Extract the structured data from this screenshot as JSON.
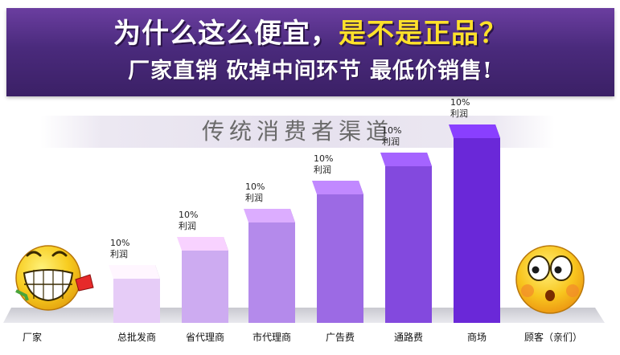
{
  "banner": {
    "headline_a": "为什么这么便宜，",
    "headline_b": "是不是正品？",
    "subline": "厂家直销  砍掉中间环节  最低价销售!"
  },
  "section": {
    "title": "传统消费者渠道"
  },
  "colors": {
    "banner_top": "#6b3ea0",
    "banner_bottom": "#3b2066",
    "headline_highlight": "#ffe12a",
    "bar_light": "#e6ccf7",
    "bar_dark": "#6a28d8",
    "floor": "#d7d7dc",
    "smiley": "#f5c51a"
  },
  "chart_data": {
    "type": "bar",
    "categories": [
      "厂家",
      "总批发商",
      "省代理商",
      "市代理商",
      "广告费",
      "通路费",
      "商场",
      "顾客（亲们）"
    ],
    "values": [
      null,
      1,
      2,
      3,
      4,
      5,
      6,
      null
    ],
    "bar_labels": [
      "",
      "10%\n利润",
      "10%\n利润",
      "10%\n利润",
      "10%\n利润",
      "10%\n利润",
      "10%\n利润",
      ""
    ],
    "icons": [
      "smiley-grin-icon",
      null,
      null,
      null,
      null,
      null,
      null,
      "smiley-worried-icon"
    ]
  }
}
